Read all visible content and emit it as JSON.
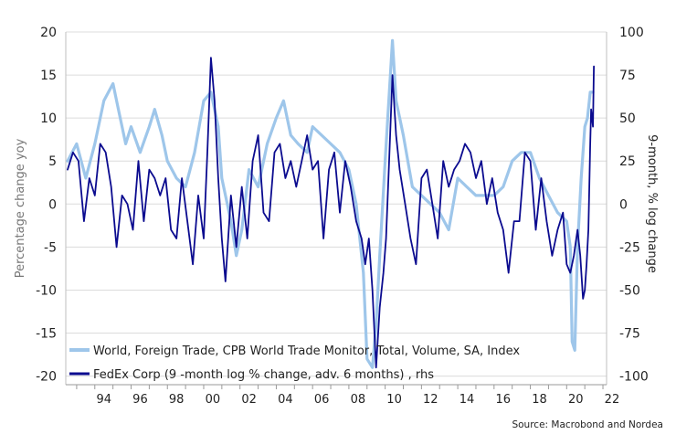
{
  "chart_data": {
    "type": "line",
    "xlim": [
      1992.4,
      2022.2
    ],
    "x_ticks": [
      "94",
      "96",
      "98",
      "00",
      "02",
      "04",
      "06",
      "08",
      "10",
      "12",
      "14",
      "16",
      "18",
      "20",
      "22"
    ],
    "y_left": {
      "label": "Percentage change yoy",
      "lim": [
        -21,
        20
      ],
      "ticks": [
        "20",
        "15",
        "10",
        "5",
        "0",
        "-5",
        "-10",
        "-15",
        "-20"
      ]
    },
    "y_right": {
      "label": "9-month, % log change",
      "lim": [
        -105,
        100
      ],
      "ticks": [
        "100",
        "75",
        "50",
        "25",
        "0",
        "-25",
        "-50",
        "-75",
        "-100"
      ]
    },
    "grid": "horizontal",
    "legend_position": "bottom-left",
    "source": "Source: Macrobond and Nordea",
    "series": [
      {
        "name": "World, Foreign Trade, CPB World Trade Monitor, Total, Volume, SA, Index",
        "axis": "left",
        "color": "#9ec6ea",
        "x": [
          1992.5,
          1993.0,
          1993.5,
          1994.0,
          1994.5,
          1995.0,
          1995.3,
          1995.7,
          1996.0,
          1996.5,
          1997.0,
          1997.3,
          1997.7,
          1998.0,
          1998.5,
          1999.0,
          1999.5,
          2000.0,
          2000.4,
          2000.8,
          2001.0,
          2001.5,
          2001.8,
          2002.1,
          2002.5,
          2003.0,
          2003.5,
          2004.0,
          2004.4,
          2004.8,
          2005.2,
          2005.7,
          2006.0,
          2006.5,
          2007.0,
          2007.5,
          2008.0,
          2008.4,
          2008.8,
          2009.0,
          2009.3,
          2009.5,
          2009.7,
          2010.0,
          2010.2,
          2010.4,
          2010.6,
          2011.0,
          2011.5,
          2012.0,
          2012.5,
          2013.0,
          2013.5,
          2014.0,
          2014.5,
          2015.0,
          2015.5,
          2016.0,
          2016.5,
          2017.0,
          2017.5,
          2018.0,
          2018.5,
          2019.0,
          2019.5,
          2020.0,
          2020.2,
          2020.3,
          2020.45,
          2020.6,
          2020.8,
          2021.0,
          2021.15,
          2021.3,
          2021.45
        ],
        "values": [
          5,
          7,
          3,
          7,
          12,
          14,
          11,
          7,
          9,
          6,
          9,
          11,
          8,
          5,
          3,
          2,
          6,
          12,
          13,
          9,
          3,
          -2,
          -6,
          -3,
          4,
          2,
          7,
          10,
          12,
          8,
          7,
          6,
          9,
          8,
          7,
          6,
          4,
          0,
          -8,
          -18,
          -19,
          -14,
          -6,
          5,
          12,
          19,
          12,
          8,
          2,
          1,
          0,
          -1,
          -3,
          3,
          2,
          1,
          1,
          1,
          2,
          5,
          6,
          6,
          3,
          1,
          -1,
          -2,
          -5,
          -16,
          -17,
          -5,
          3,
          9,
          10,
          13,
          13
        ]
      },
      {
        "name": "FedEx Corp (9 -month log % change, adv. 6 months) , rhs",
        "axis": "right",
        "color": "#0b0b8f",
        "x": [
          1992.5,
          1992.8,
          1993.1,
          1993.4,
          1993.7,
          1994.0,
          1994.3,
          1994.6,
          1994.9,
          1995.2,
          1995.5,
          1995.8,
          1996.1,
          1996.4,
          1996.7,
          1997.0,
          1997.3,
          1997.6,
          1997.9,
          1998.2,
          1998.5,
          1998.8,
          1999.1,
          1999.4,
          1999.7,
          2000.0,
          2000.2,
          2000.4,
          2000.6,
          2000.8,
          2001.0,
          2001.2,
          2001.5,
          2001.8,
          2002.1,
          2002.4,
          2002.7,
          2003.0,
          2003.3,
          2003.6,
          2003.9,
          2004.2,
          2004.5,
          2004.8,
          2005.1,
          2005.4,
          2005.7,
          2006.0,
          2006.3,
          2006.6,
          2006.9,
          2007.2,
          2007.5,
          2007.8,
          2008.1,
          2008.4,
          2008.7,
          2008.9,
          2009.1,
          2009.3,
          2009.5,
          2009.7,
          2009.9,
          2010.05,
          2010.2,
          2010.4,
          2010.6,
          2010.8,
          2011.1,
          2011.4,
          2011.7,
          2012.0,
          2012.3,
          2012.6,
          2012.9,
          2013.2,
          2013.5,
          2013.8,
          2014.1,
          2014.4,
          2014.7,
          2015.0,
          2015.3,
          2015.6,
          2015.9,
          2016.2,
          2016.5,
          2016.8,
          2017.1,
          2017.4,
          2017.7,
          2018.0,
          2018.3,
          2018.6,
          2018.9,
          2019.2,
          2019.5,
          2019.8,
          2020.0,
          2020.2,
          2020.4,
          2020.6,
          2020.75,
          2020.9,
          2021.0,
          2021.1,
          2021.2,
          2021.3,
          2021.35,
          2021.45,
          2021.5
        ],
        "values": [
          20,
          30,
          25,
          -10,
          15,
          5,
          35,
          30,
          10,
          -25,
          5,
          0,
          -15,
          25,
          -10,
          20,
          15,
          5,
          15,
          -15,
          -20,
          15,
          -10,
          -35,
          5,
          -20,
          30,
          85,
          60,
          15,
          -20,
          -45,
          5,
          -25,
          10,
          -20,
          25,
          40,
          -5,
          -10,
          30,
          35,
          15,
          25,
          10,
          25,
          40,
          20,
          25,
          -20,
          20,
          30,
          -5,
          25,
          10,
          -10,
          -20,
          -35,
          -20,
          -50,
          -95,
          -60,
          -40,
          -20,
          20,
          75,
          40,
          20,
          0,
          -20,
          -35,
          15,
          20,
          0,
          -20,
          25,
          10,
          20,
          25,
          35,
          30,
          15,
          25,
          0,
          15,
          -5,
          -15,
          -40,
          -10,
          -10,
          30,
          25,
          -15,
          15,
          -10,
          -30,
          -15,
          -5,
          -35,
          -40,
          -30,
          -15,
          -30,
          -55,
          -50,
          -35,
          -15,
          35,
          55,
          45,
          80
        ]
      }
    ]
  }
}
